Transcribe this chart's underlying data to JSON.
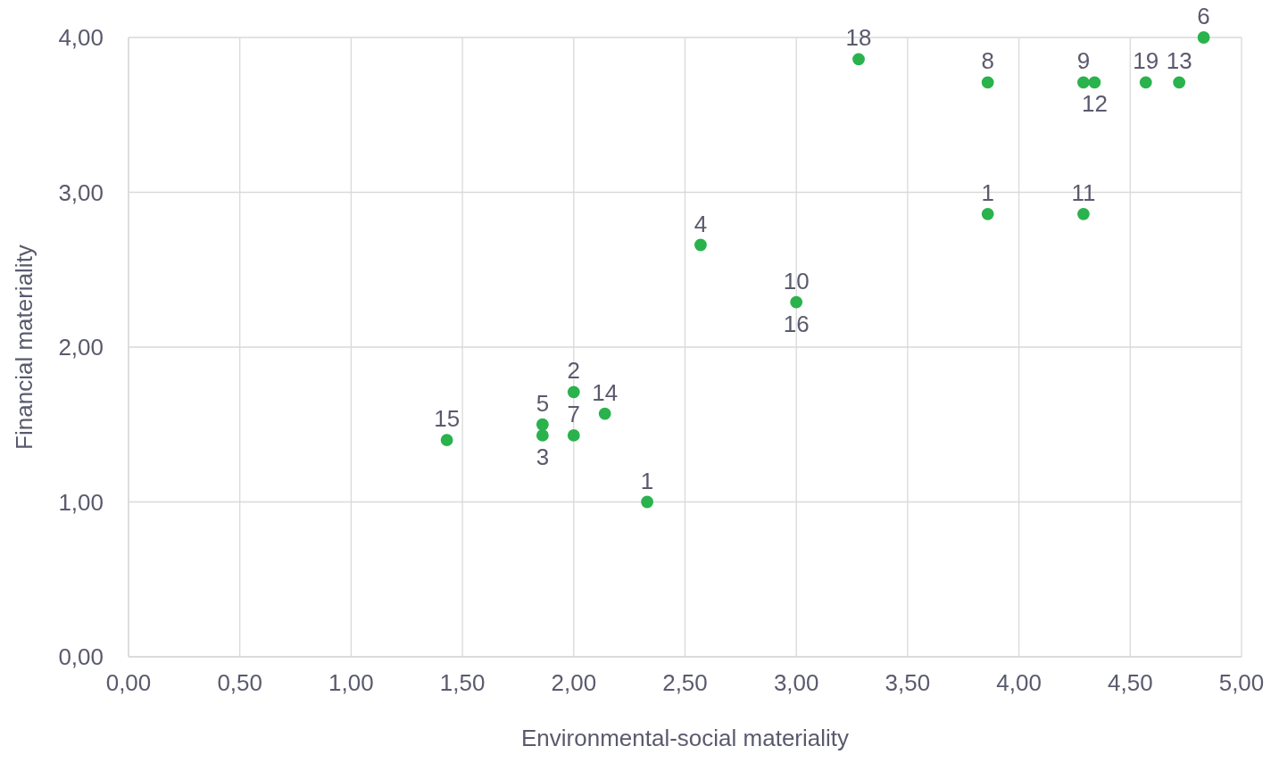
{
  "chart_data": {
    "type": "scatter",
    "xlabel": "Environmental-social materiality",
    "ylabel": "Financial materiality",
    "xlim": [
      0,
      5
    ],
    "ylim": [
      0,
      4
    ],
    "xticks": [
      {
        "value": 0,
        "label": "0,00"
      },
      {
        "value": 0.5,
        "label": "0,50"
      },
      {
        "value": 1,
        "label": "1,00"
      },
      {
        "value": 1.5,
        "label": "1,50"
      },
      {
        "value": 2,
        "label": "2,00"
      },
      {
        "value": 2.5,
        "label": "2,50"
      },
      {
        "value": 3,
        "label": "3,00"
      },
      {
        "value": 3.5,
        "label": "3,50"
      },
      {
        "value": 4,
        "label": "4,00"
      },
      {
        "value": 4.5,
        "label": "4,50"
      },
      {
        "value": 5,
        "label": "5,00"
      }
    ],
    "yticks": [
      {
        "value": 0,
        "label": "0,00"
      },
      {
        "value": 1,
        "label": "1,00"
      },
      {
        "value": 2,
        "label": "2,00"
      },
      {
        "value": 3,
        "label": "3,00"
      },
      {
        "value": 4,
        "label": "4,00"
      }
    ],
    "grid": true,
    "marker": "circle",
    "series": [
      {
        "color": "#2ab24d",
        "x": [
          1.43,
          1.86,
          1.86,
          2.0,
          2.0,
          2.14,
          2.33,
          2.57,
          3.0,
          3.28,
          3.86,
          3.86,
          4.29,
          4.34,
          4.29,
          4.57,
          4.72,
          4.83
        ],
        "values": [
          1.4,
          1.5,
          1.43,
          1.71,
          1.43,
          1.57,
          1.0,
          2.66,
          2.29,
          3.86,
          3.71,
          2.86,
          3.71,
          3.71,
          2.86,
          3.71,
          3.71,
          4.0
        ]
      }
    ],
    "annotations": [
      {
        "text": "15",
        "x": 1.43,
        "y": 1.4
      },
      {
        "text": "5",
        "x": 1.86,
        "y": 1.5
      },
      {
        "text": "3",
        "x": 1.86,
        "y": 1.43
      },
      {
        "text": "2",
        "x": 2.0,
        "y": 1.71
      },
      {
        "text": "7",
        "x": 2.0,
        "y": 1.43
      },
      {
        "text": "14",
        "x": 2.14,
        "y": 1.57
      },
      {
        "text": "1",
        "x": 2.33,
        "y": 1.0
      },
      {
        "text": "4",
        "x": 2.57,
        "y": 2.66
      },
      {
        "text": "10",
        "x": 3.0,
        "y": 2.29
      },
      {
        "text": "16",
        "x": 3.0,
        "y": 2.29
      },
      {
        "text": "18",
        "x": 3.28,
        "y": 3.86
      },
      {
        "text": "8",
        "x": 3.86,
        "y": 3.71
      },
      {
        "text": "1",
        "x": 3.86,
        "y": 2.86
      },
      {
        "text": "9",
        "x": 4.29,
        "y": 3.71
      },
      {
        "text": "12",
        "x": 4.34,
        "y": 3.71
      },
      {
        "text": "11",
        "x": 4.29,
        "y": 2.86
      },
      {
        "text": "19",
        "x": 4.57,
        "y": 3.71
      },
      {
        "text": "13",
        "x": 4.72,
        "y": 3.71
      },
      {
        "text": "6",
        "x": 4.83,
        "y": 4.0
      }
    ]
  }
}
